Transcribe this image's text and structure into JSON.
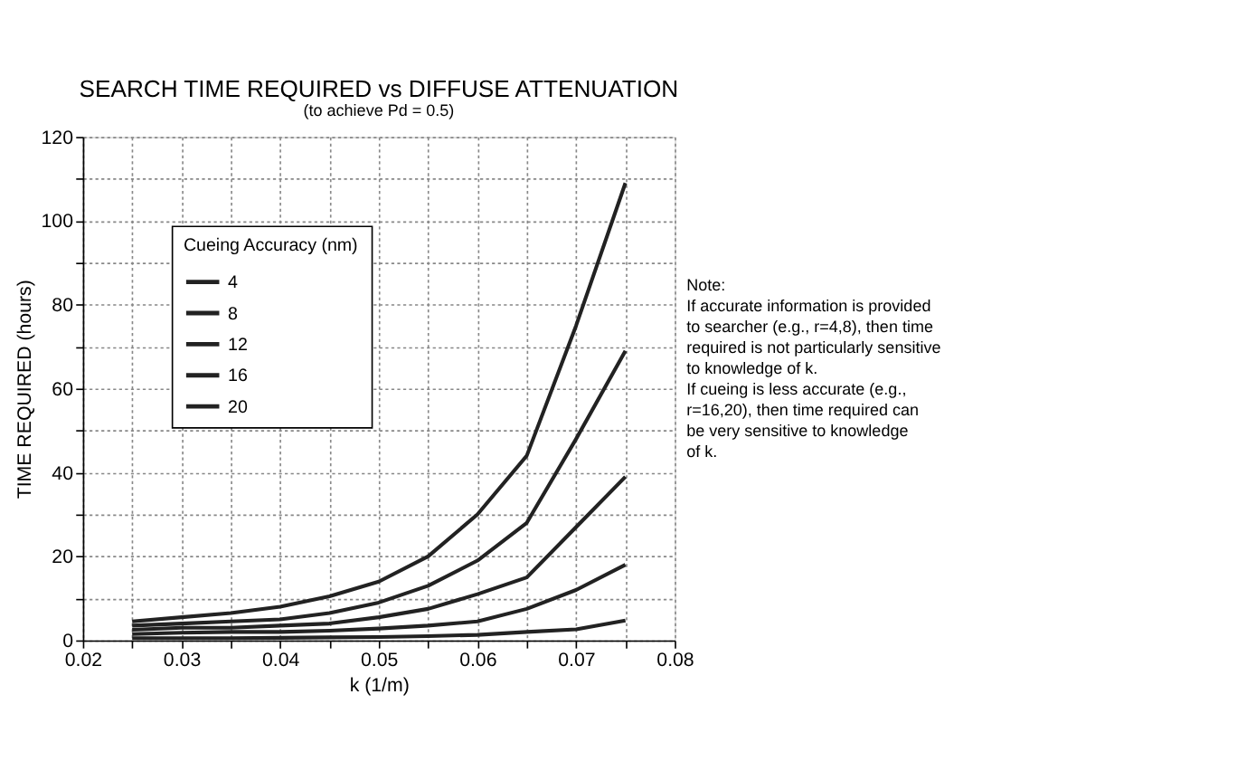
{
  "chart_data": {
    "type": "line",
    "title": "SEARCH TIME REQUIRED vs DIFFUSE ATTENUATION",
    "subtitle": "(to achieve Pd = 0.5)",
    "xlabel": "k (1/m)",
    "ylabel": "TIME REQUIRED (hours)",
    "legend_title": "Cueing Accuracy (nm)",
    "legend": "top left",
    "grid": true,
    "line_style": "solid",
    "x": [
      0.025,
      0.03,
      0.035,
      0.04,
      0.045,
      0.05,
      0.055,
      0.06,
      0.065,
      0.07,
      0.075
    ],
    "series": [
      {
        "name": "4",
        "color": "#222222",
        "values": [
          0.5,
          0.5,
          0.5,
          0.6,
          0.7,
          0.8,
          1,
          1.3,
          2,
          2.6,
          4.7
        ]
      },
      {
        "name": "8",
        "color": "#222222",
        "values": [
          1.5,
          1.8,
          2,
          2,
          2.3,
          2.8,
          3.5,
          4.5,
          7.5,
          12,
          18
        ]
      },
      {
        "name": "12",
        "color": "#222222",
        "values": [
          2.5,
          3,
          3,
          3.5,
          4,
          5.5,
          7.5,
          11,
          15,
          27,
          39
        ]
      },
      {
        "name": "16",
        "color": "#222222",
        "values": [
          3.5,
          4,
          4.5,
          5,
          6.5,
          9,
          13,
          19,
          28,
          48,
          69
        ]
      },
      {
        "name": "20",
        "color": "#222222",
        "values": [
          4.5,
          5.5,
          6.5,
          8,
          10.5,
          14,
          20,
          30,
          44,
          75,
          109
        ]
      }
    ],
    "xlim": [
      0.02,
      0.08
    ],
    "xticks": [
      0.02,
      {
        "value": 0.025,
        "label": null
      },
      0.03,
      {
        "value": 0.035,
        "label": null
      },
      0.04,
      {
        "value": 0.045,
        "label": null
      },
      0.05,
      {
        "value": 0.055,
        "label": null
      },
      0.06,
      {
        "value": 0.065,
        "label": null
      },
      0.07,
      {
        "value": 0.075,
        "label": null
      },
      0.08
    ],
    "ylim": [
      0,
      120
    ],
    "yticks": [
      0,
      {
        "value": 10,
        "label": null
      },
      20,
      {
        "value": 30,
        "label": null
      },
      40,
      {
        "value": 50,
        "label": null
      },
      60,
      {
        "value": 70,
        "label": null
      },
      80,
      {
        "value": 90,
        "label": null
      },
      100,
      {
        "value": 110,
        "label": null
      },
      120
    ],
    "annotations": [
      "Note:\nIf accurate information is provided\nto searcher (e.g., r=4,8), then time\nrequired is not particularly sensitive\nto knowledge of k.\n\nIf cueing is less accurate (e.g.,\nr=16,20), then time required can\nbe very sensitive to knowledge\nof k."
    ]
  }
}
